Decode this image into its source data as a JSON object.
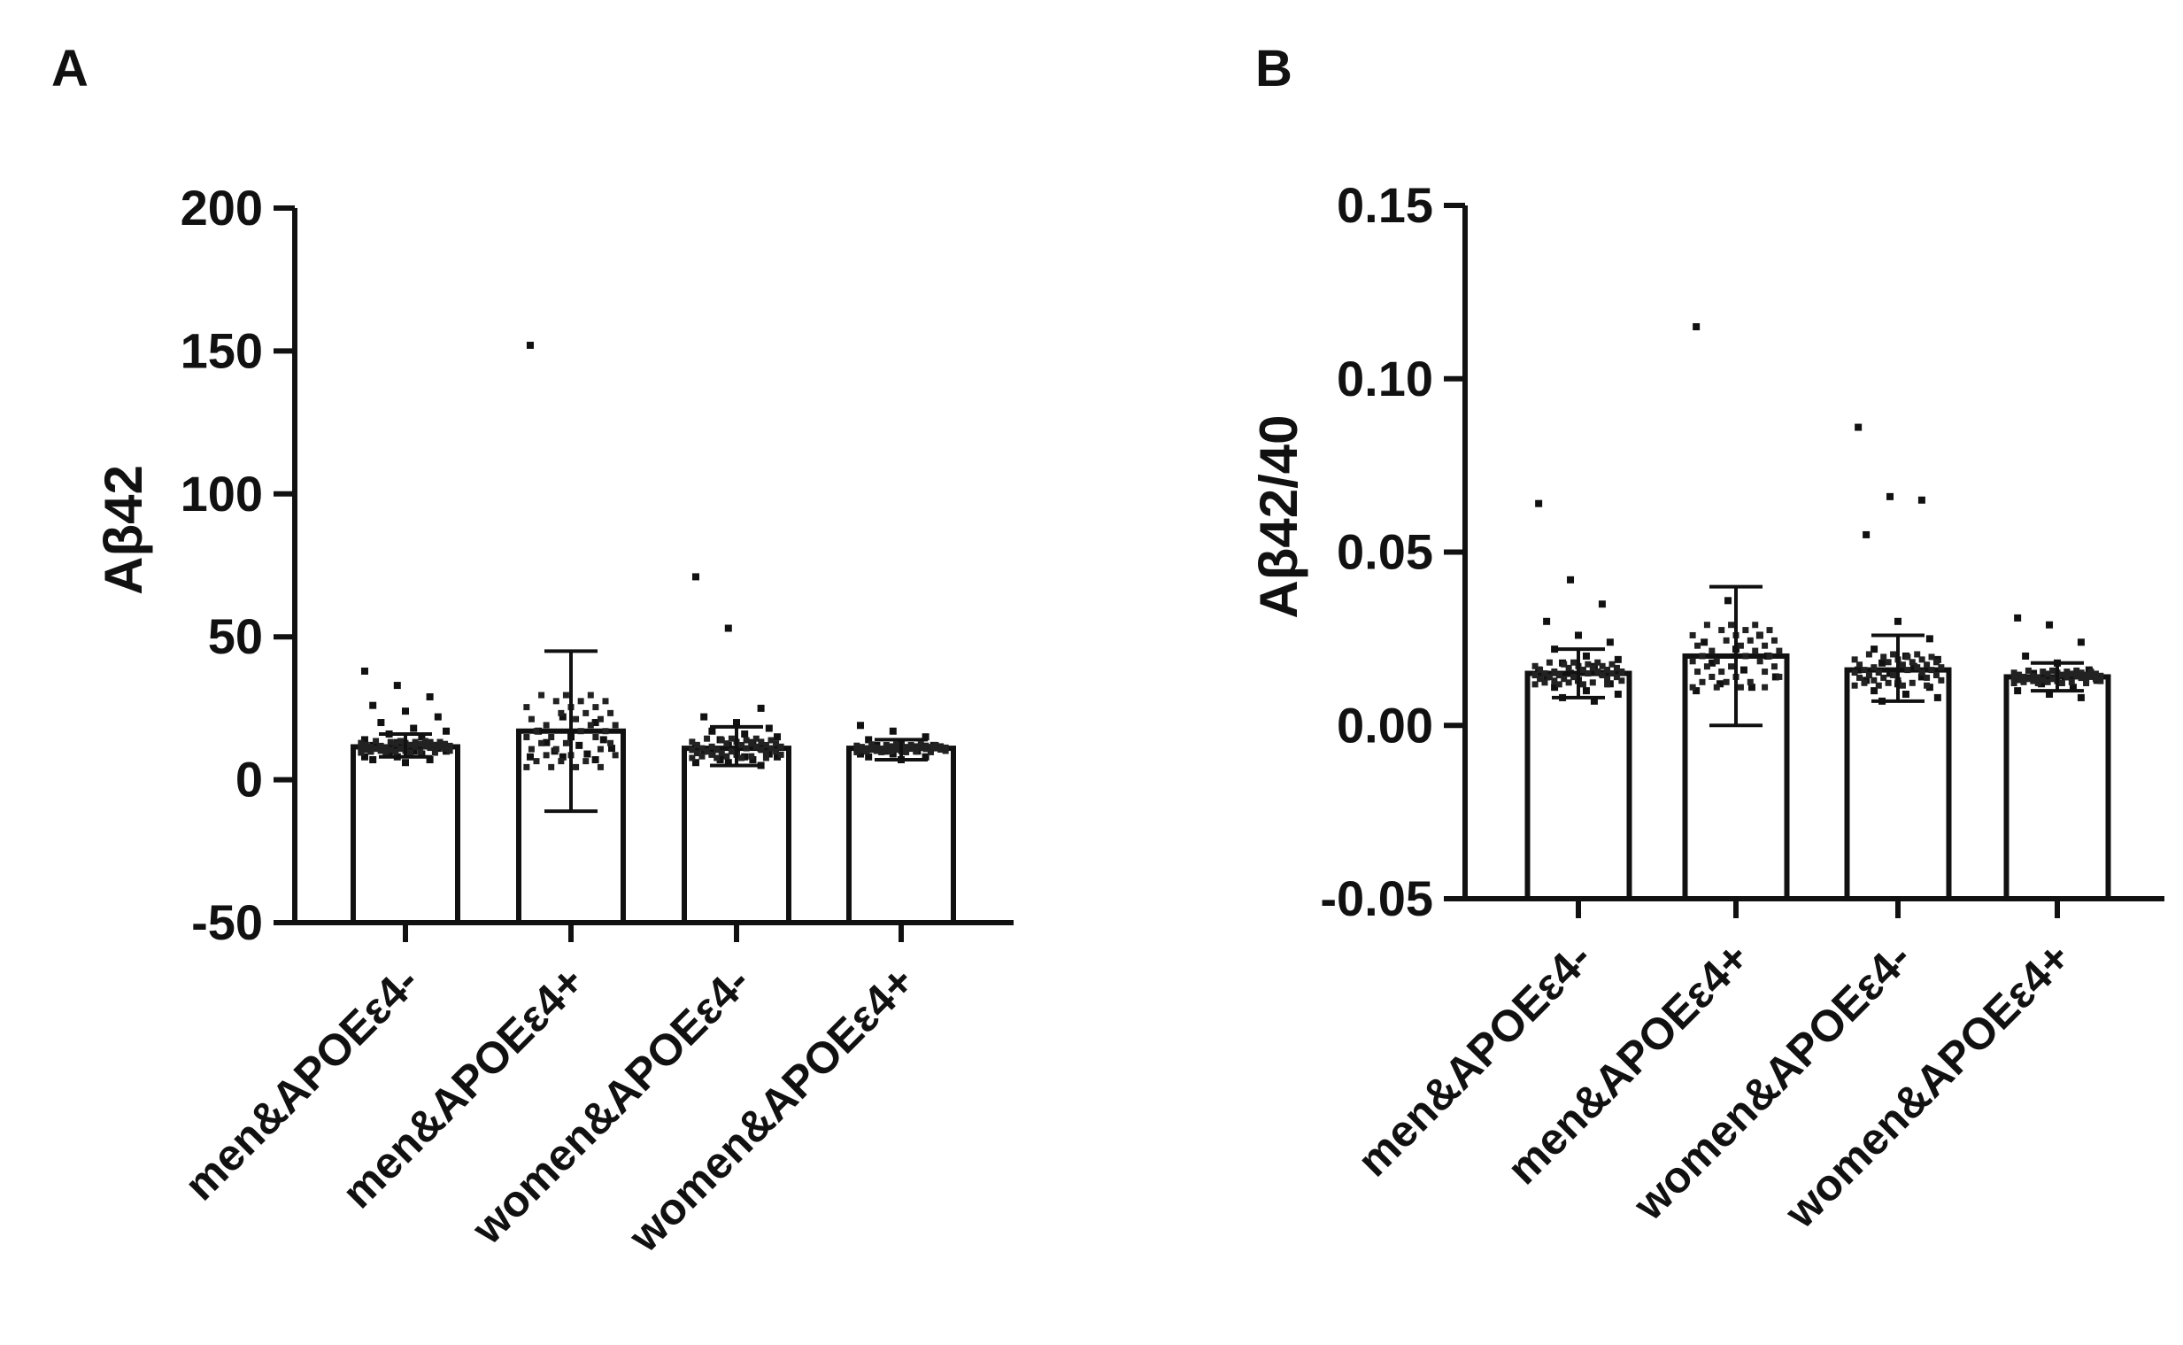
{
  "chart_data": [
    {
      "panel": "A",
      "type": "bar",
      "ylabel": "Aβ42",
      "xlabel": "",
      "ylim": [
        -50,
        200
      ],
      "yticks": [
        -50,
        0,
        50,
        100,
        150,
        200
      ],
      "ytick_labels": [
        "-50",
        "0",
        "50",
        "100",
        "150",
        "200"
      ],
      "categories": [
        "men&APOEε4-",
        "men&APOEε4+",
        "women&APOEε4-",
        "women&APOEε4+"
      ],
      "values": [
        11.5,
        17,
        11,
        11
      ],
      "error_low": [
        8,
        -11,
        5,
        7
      ],
      "error_high": [
        16,
        45,
        18.5,
        14
      ],
      "points": [
        [
          38,
          33,
          29,
          26,
          24,
          22,
          20,
          18,
          17,
          16,
          15,
          14,
          13,
          13,
          12,
          12,
          11,
          11,
          10,
          10,
          9,
          9,
          8,
          8,
          7,
          7,
          6
        ],
        [
          152,
          22,
          20,
          17,
          15,
          14,
          13,
          12,
          11,
          10,
          9,
          8,
          8,
          7
        ],
        [
          71,
          53,
          25,
          22,
          20,
          18,
          17,
          16,
          15,
          14,
          13,
          12,
          12,
          11,
          10,
          10,
          9,
          9,
          8,
          8,
          7,
          7,
          6,
          6,
          5
        ],
        [
          19,
          17,
          15,
          14,
          13,
          12,
          12,
          11,
          11,
          10,
          10,
          9,
          9,
          8,
          8,
          7
        ]
      ]
    },
    {
      "panel": "B",
      "type": "bar",
      "ylabel": "Aβ42/40",
      "xlabel": "",
      "ylim": [
        -0.05,
        0.15
      ],
      "yticks": [
        -0.05,
        0,
        0.05,
        0.1,
        0.15
      ],
      "ytick_labels": [
        "-0.05",
        "0.00",
        "0.05",
        "0.10",
        "0.15"
      ],
      "categories": [
        "men&APOEε4-",
        "men&APOEε4+",
        "women&APOEε4-",
        "women&APOEε4+"
      ],
      "values": [
        0.015,
        0.02,
        0.016,
        0.014
      ],
      "error_low": [
        0.008,
        0.0,
        0.007,
        0.01
      ],
      "error_high": [
        0.022,
        0.04,
        0.026,
        0.018
      ],
      "points": [
        [
          0.064,
          0.042,
          0.035,
          0.03,
          0.026,
          0.024,
          0.022,
          0.02,
          0.019,
          0.018,
          0.017,
          0.016,
          0.015,
          0.015,
          0.014,
          0.013,
          0.012,
          0.011,
          0.01,
          0.009,
          0.008,
          0.007
        ],
        [
          0.115,
          0.036,
          0.026,
          0.024,
          0.022,
          0.02,
          0.018,
          0.016,
          0.014,
          0.012,
          0.011,
          0.01
        ],
        [
          0.086,
          0.066,
          0.065,
          0.055,
          0.03,
          0.025,
          0.022,
          0.02,
          0.019,
          0.018,
          0.017,
          0.016,
          0.015,
          0.014,
          0.013,
          0.012,
          0.011,
          0.01,
          0.009,
          0.008,
          0.007
        ],
        [
          0.031,
          0.029,
          0.024,
          0.02,
          0.018,
          0.016,
          0.015,
          0.014,
          0.013,
          0.012,
          0.011,
          0.01,
          0.009,
          0.008
        ]
      ]
    }
  ]
}
